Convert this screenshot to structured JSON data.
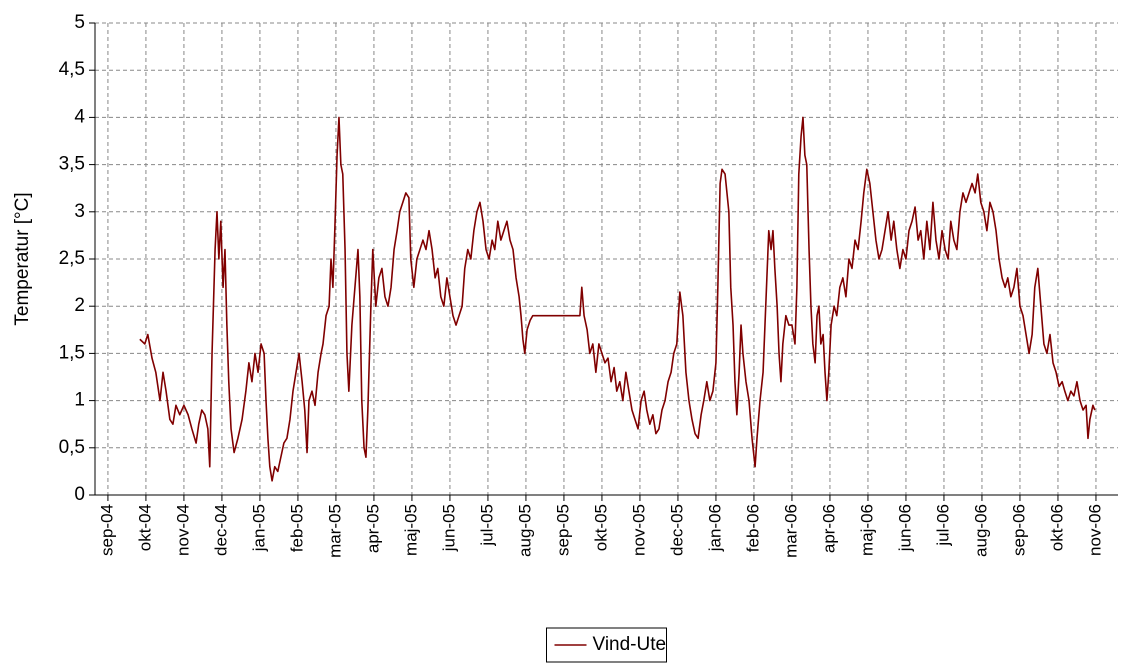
{
  "chart_data": {
    "type": "line",
    "y_label": "Temperatur [°C]",
    "xlim": [
      -0.34,
      26.58
    ],
    "xticks": [
      {
        "value": 0,
        "label": "sep-04"
      },
      {
        "value": 1,
        "label": "okt-04"
      },
      {
        "value": 2,
        "label": "nov-04"
      },
      {
        "value": 3,
        "label": "dec-04"
      },
      {
        "value": 4,
        "label": "jan-05"
      },
      {
        "value": 5,
        "label": "feb-05"
      },
      {
        "value": 6,
        "label": "mar-05"
      },
      {
        "value": 7,
        "label": "apr-05"
      },
      {
        "value": 8,
        "label": "maj-05"
      },
      {
        "value": 9,
        "label": "jun-05"
      },
      {
        "value": 10,
        "label": "jul-05"
      },
      {
        "value": 11,
        "label": "aug-05"
      },
      {
        "value": 12,
        "label": "sep-05"
      },
      {
        "value": 13,
        "label": "okt-05"
      },
      {
        "value": 14,
        "label": "nov-05"
      },
      {
        "value": 15,
        "label": "dec-05"
      },
      {
        "value": 16,
        "label": "jan-06"
      },
      {
        "value": 17,
        "label": "feb-06"
      },
      {
        "value": 18,
        "label": "mar-06"
      },
      {
        "value": 19,
        "label": "apr-06"
      },
      {
        "value": 20,
        "label": "maj-06"
      },
      {
        "value": 21,
        "label": "jun-06"
      },
      {
        "value": 22,
        "label": "jul-06"
      },
      {
        "value": 23,
        "label": "aug-06"
      },
      {
        "value": 24,
        "label": "sep-06"
      },
      {
        "value": 25,
        "label": "okt-06"
      },
      {
        "value": 26,
        "label": "nov-06"
      }
    ],
    "ylim": [
      0,
      5
    ],
    "yticks": [
      0,
      {
        "value": 0.5,
        "label": "0,5"
      },
      1,
      {
        "value": 1.5,
        "label": "1,5"
      },
      2,
      {
        "value": 2.5,
        "label": "2,5"
      },
      3,
      {
        "value": 3.5,
        "label": "3,5"
      },
      4,
      {
        "value": 4.5,
        "label": "4,5"
      },
      5
    ],
    "grid": true,
    "legend": "bottom",
    "x": [
      0.84,
      0.97,
      1.05,
      1.16,
      1.26,
      1.37,
      1.45,
      1.53,
      1.63,
      1.71,
      1.79,
      1.89,
      2.0,
      2.11,
      2.21,
      2.32,
      2.39,
      2.47,
      2.55,
      2.63,
      2.68,
      2.74,
      2.82,
      2.87,
      2.92,
      2.97,
      3.03,
      3.08,
      3.13,
      3.18,
      3.24,
      3.32,
      3.42,
      3.53,
      3.63,
      3.71,
      3.79,
      3.87,
      3.95,
      4.03,
      4.11,
      4.16,
      4.21,
      4.26,
      4.32,
      4.39,
      4.47,
      4.55,
      4.63,
      4.71,
      4.79,
      4.87,
      4.95,
      5.03,
      5.11,
      5.18,
      5.24,
      5.29,
      5.37,
      5.45,
      5.53,
      5.61,
      5.66,
      5.74,
      5.82,
      5.87,
      5.92,
      5.97,
      6.03,
      6.08,
      6.13,
      6.18,
      6.24,
      6.29,
      6.34,
      6.42,
      6.5,
      6.58,
      6.63,
      6.68,
      6.74,
      6.79,
      6.84,
      6.92,
      6.97,
      7.05,
      7.13,
      7.21,
      7.29,
      7.37,
      7.45,
      7.53,
      7.61,
      7.68,
      7.76,
      7.84,
      7.92,
      7.97,
      8.05,
      8.13,
      8.21,
      8.29,
      8.37,
      8.45,
      8.53,
      8.61,
      8.68,
      8.76,
      8.84,
      8.92,
      9.0,
      9.08,
      9.16,
      9.24,
      9.32,
      9.39,
      9.47,
      9.55,
      9.63,
      9.71,
      9.79,
      9.87,
      9.95,
      10.03,
      10.11,
      10.18,
      10.26,
      10.34,
      10.42,
      10.5,
      10.58,
      10.66,
      10.74,
      10.82,
      10.87,
      10.92,
      10.97,
      11.03,
      11.11,
      11.18,
      12.42,
      12.47,
      12.53,
      12.61,
      12.68,
      12.76,
      12.84,
      12.92,
      13.0,
      13.08,
      13.16,
      13.24,
      13.32,
      13.39,
      13.47,
      13.55,
      13.63,
      13.71,
      13.79,
      13.87,
      13.95,
      14.03,
      14.11,
      14.18,
      14.26,
      14.34,
      14.42,
      14.5,
      14.58,
      14.66,
      14.74,
      14.82,
      14.89,
      14.97,
      15.05,
      15.13,
      15.21,
      15.29,
      15.37,
      15.45,
      15.53,
      15.61,
      15.68,
      15.76,
      15.84,
      15.92,
      16.0,
      16.05,
      16.11,
      16.16,
      16.24,
      16.29,
      16.34,
      16.39,
      16.45,
      16.5,
      16.55,
      16.61,
      16.66,
      16.71,
      16.79,
      16.87,
      16.95,
      17.03,
      17.08,
      17.16,
      17.24,
      17.29,
      17.34,
      17.39,
      17.45,
      17.5,
      17.55,
      17.61,
      17.66,
      17.71,
      17.76,
      17.84,
      17.92,
      18.0,
      18.08,
      18.13,
      18.18,
      18.24,
      18.29,
      18.34,
      18.39,
      18.45,
      18.5,
      18.55,
      18.61,
      18.66,
      18.71,
      18.76,
      18.82,
      18.87,
      18.92,
      18.97,
      19.03,
      19.11,
      19.18,
      19.26,
      19.34,
      19.42,
      19.5,
      19.58,
      19.66,
      19.74,
      19.82,
      19.89,
      19.97,
      20.05,
      20.13,
      20.21,
      20.29,
      20.37,
      20.45,
      20.53,
      20.61,
      20.68,
      20.76,
      20.84,
      20.92,
      21.0,
      21.08,
      21.16,
      21.24,
      21.32,
      21.39,
      21.47,
      21.55,
      21.63,
      21.71,
      21.79,
      21.87,
      21.95,
      22.03,
      22.11,
      22.18,
      22.26,
      22.34,
      22.42,
      22.5,
      22.58,
      22.66,
      22.74,
      22.82,
      22.89,
      22.97,
      23.05,
      23.13,
      23.21,
      23.29,
      23.37,
      23.45,
      23.53,
      23.61,
      23.68,
      23.76,
      23.84,
      23.92,
      24.0,
      24.08,
      24.16,
      24.24,
      24.32,
      24.39,
      24.47,
      24.55,
      24.63,
      24.71,
      24.79,
      24.87,
      24.95,
      25.03,
      25.11,
      25.18,
      25.26,
      25.34,
      25.42,
      25.5,
      25.58,
      25.66,
      25.74,
      25.79,
      25.84,
      25.92,
      25.97
    ],
    "series": [
      {
        "name": "Vind-Ute",
        "color": "#800000",
        "values": [
          1.65,
          1.6,
          1.7,
          1.45,
          1.3,
          1.0,
          1.3,
          1.1,
          0.8,
          0.75,
          0.95,
          0.85,
          0.95,
          0.85,
          0.7,
          0.55,
          0.75,
          0.9,
          0.85,
          0.7,
          0.3,
          1.5,
          2.6,
          3.0,
          2.5,
          2.9,
          2.2,
          2.6,
          1.8,
          1.2,
          0.7,
          0.45,
          0.6,
          0.8,
          1.1,
          1.4,
          1.2,
          1.5,
          1.3,
          1.6,
          1.5,
          1.0,
          0.6,
          0.3,
          0.15,
          0.3,
          0.25,
          0.4,
          0.55,
          0.6,
          0.8,
          1.1,
          1.3,
          1.5,
          1.2,
          0.9,
          0.45,
          1.0,
          1.1,
          0.95,
          1.3,
          1.5,
          1.6,
          1.9,
          2.0,
          2.5,
          2.2,
          2.8,
          3.6,
          4.0,
          3.5,
          3.4,
          2.6,
          1.5,
          1.1,
          1.8,
          2.2,
          2.6,
          2.1,
          1.0,
          0.5,
          0.4,
          0.9,
          2.0,
          2.6,
          2.0,
          2.3,
          2.4,
          2.1,
          2.0,
          2.2,
          2.6,
          2.8,
          3.0,
          3.1,
          3.2,
          3.15,
          2.5,
          2.2,
          2.5,
          2.6,
          2.7,
          2.6,
          2.8,
          2.6,
          2.3,
          2.4,
          2.1,
          2.0,
          2.3,
          2.1,
          1.9,
          1.8,
          1.9,
          2.0,
          2.4,
          2.6,
          2.5,
          2.8,
          3.0,
          3.1,
          2.9,
          2.6,
          2.5,
          2.7,
          2.6,
          2.9,
          2.7,
          2.8,
          2.9,
          2.7,
          2.6,
          2.3,
          2.1,
          1.9,
          1.65,
          1.5,
          1.75,
          1.85,
          1.9,
          1.9,
          2.2,
          1.9,
          1.75,
          1.5,
          1.6,
          1.3,
          1.6,
          1.5,
          1.4,
          1.45,
          1.2,
          1.35,
          1.1,
          1.2,
          1.0,
          1.3,
          1.1,
          0.9,
          0.8,
          0.7,
          1.0,
          1.1,
          0.9,
          0.75,
          0.85,
          0.65,
          0.7,
          0.9,
          1.0,
          1.2,
          1.3,
          1.5,
          1.6,
          2.15,
          1.9,
          1.3,
          1.0,
          0.8,
          0.65,
          0.6,
          0.85,
          1.0,
          1.2,
          1.0,
          1.1,
          1.4,
          2.2,
          3.3,
          3.45,
          3.4,
          3.2,
          3.0,
          2.2,
          1.8,
          1.2,
          0.85,
          1.3,
          1.8,
          1.5,
          1.2,
          1.0,
          0.6,
          0.3,
          0.6,
          1.0,
          1.3,
          1.8,
          2.3,
          2.8,
          2.6,
          2.8,
          2.4,
          2.0,
          1.5,
          1.2,
          1.6,
          1.9,
          1.8,
          1.8,
          1.6,
          2.2,
          3.4,
          3.8,
          4.0,
          3.6,
          3.5,
          2.6,
          2.0,
          1.6,
          1.4,
          1.9,
          2.0,
          1.6,
          1.7,
          1.3,
          1.0,
          1.3,
          1.8,
          2.0,
          1.9,
          2.2,
          2.3,
          2.1,
          2.5,
          2.4,
          2.7,
          2.6,
          2.9,
          3.2,
          3.45,
          3.3,
          3.0,
          2.7,
          2.5,
          2.6,
          2.8,
          3.0,
          2.7,
          2.9,
          2.6,
          2.4,
          2.6,
          2.5,
          2.8,
          2.9,
          3.05,
          2.7,
          2.8,
          2.5,
          2.9,
          2.6,
          3.1,
          2.7,
          2.5,
          2.8,
          2.6,
          2.5,
          2.9,
          2.7,
          2.6,
          3.0,
          3.2,
          3.1,
          3.2,
          3.3,
          3.2,
          3.4,
          3.1,
          3.0,
          2.8,
          3.1,
          3.0,
          2.8,
          2.5,
          2.3,
          2.2,
          2.3,
          2.1,
          2.2,
          2.4,
          2.0,
          1.9,
          1.7,
          1.5,
          1.7,
          2.2,
          2.4,
          2.0,
          1.6,
          1.5,
          1.7,
          1.4,
          1.3,
          1.15,
          1.2,
          1.1,
          1.0,
          1.1,
          1.05,
          1.2,
          1.0,
          0.9,
          0.95,
          0.6,
          0.8,
          0.95,
          0.9
        ]
      }
    ]
  }
}
